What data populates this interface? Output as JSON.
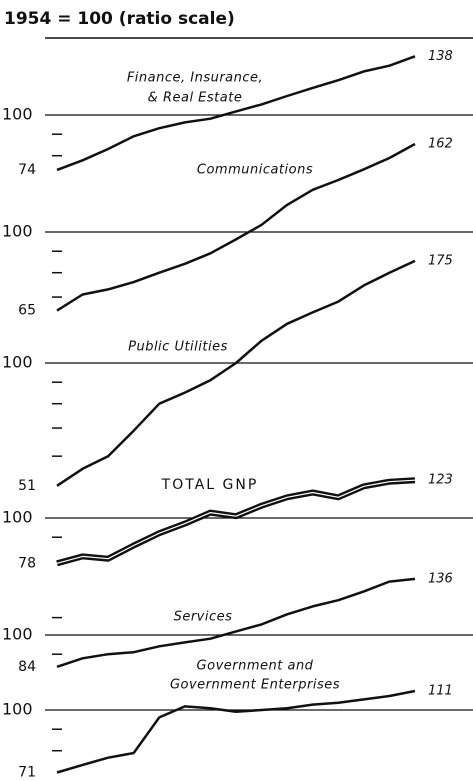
{
  "title": "1954 = 100 (ratio scale)",
  "chart_data": [
    {
      "type": "line",
      "log_scale": true,
      "name": [
        "Finance, Insurance,",
        "& Real Estate"
      ],
      "color": "#111111",
      "values": [
        74,
        78,
        83,
        89,
        93,
        96,
        98,
        102,
        106,
        111,
        116,
        121,
        127,
        131,
        138
      ],
      "ylim": [
        70,
        140
      ],
      "yticks": [
        100
      ],
      "minor_yticks": [
        80,
        90
      ]
    },
    {
      "type": "line",
      "log_scale": true,
      "name": [
        "Communications"
      ],
      "color": "#111111",
      "values": [
        65,
        71,
        73,
        76,
        80,
        84,
        89,
        96,
        104,
        116,
        126,
        133,
        141,
        150,
        162
      ],
      "ylim": [
        62,
        165
      ],
      "yticks": [
        100
      ],
      "minor_yticks": [
        70,
        80,
        90
      ]
    },
    {
      "type": "line",
      "log_scale": true,
      "name": [
        "Public Utilities"
      ],
      "color": "#111111",
      "values": [
        51,
        56,
        60,
        69,
        80,
        85,
        91,
        100,
        113,
        124,
        132,
        140,
        153,
        164,
        175
      ],
      "ylim": [
        49,
        180
      ],
      "yticks": [
        100
      ],
      "minor_yticks": [
        60,
        70,
        80,
        90
      ]
    },
    {
      "type": "line",
      "log_scale": true,
      "name": [
        "TOTAL GNP"
      ],
      "color": "#111111",
      "bold": true,
      "values": [
        78,
        81,
        80,
        86,
        92,
        97,
        103,
        101,
        107,
        112,
        115,
        112,
        119,
        122,
        123
      ],
      "ylim": [
        76,
        125
      ],
      "yticks": [
        100
      ],
      "minor_yticks": [
        90
      ]
    },
    {
      "type": "line",
      "log_scale": true,
      "name": [
        "Services"
      ],
      "color": "#111111",
      "values": [
        84,
        88,
        90,
        91,
        94,
        96,
        98,
        102,
        106,
        112,
        117,
        121,
        127,
        134,
        136
      ],
      "ylim": [
        82,
        140
      ],
      "yticks": [
        100
      ],
      "minor_yticks": [
        90,
        110
      ]
    },
    {
      "type": "line",
      "log_scale": true,
      "name": [
        "Government and",
        "Government Enterprises"
      ],
      "color": "#111111",
      "values": [
        71,
        74,
        77,
        79,
        96,
        102,
        101,
        99,
        100,
        101,
        103,
        104,
        106,
        108,
        111
      ],
      "ylim": [
        69,
        113
      ],
      "yticks": [
        100
      ],
      "minor_yticks": [
        80,
        90
      ]
    }
  ]
}
